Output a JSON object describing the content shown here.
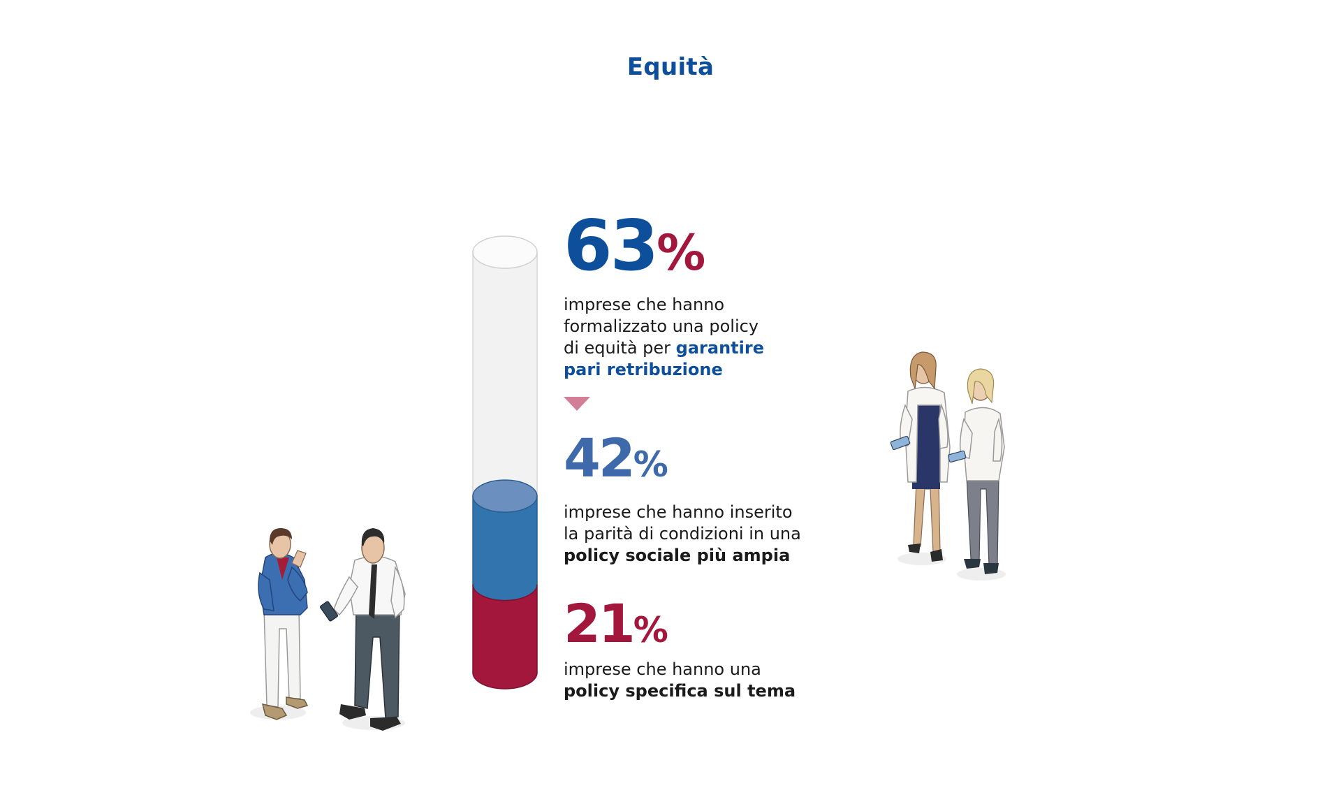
{
  "page": {
    "title": "Equità"
  },
  "stats": [
    {
      "value": "63",
      "unit": "%",
      "line1": "imprese che hanno",
      "line2": "formalizzato una policy",
      "line3_plain": "di equità per",
      "line3_highlight": "garantire",
      "line4_highlight": "pari retribuzione"
    },
    {
      "value": "42",
      "unit": "%",
      "line1": "imprese che hanno inserito",
      "line2": "la parità di condizioni in una",
      "line3_bold": "policy sociale più ampia"
    },
    {
      "value": "21",
      "unit": "%",
      "line1": "imprese che hanno una",
      "line2_bold": "policy specifica sul tema"
    }
  ],
  "chart_data": {
    "type": "bar",
    "categories": [
      "63%",
      "42%",
      "21%"
    ],
    "values": [
      63,
      42,
      21
    ],
    "ylim": [
      0,
      100
    ],
    "colors": [
      "#f2f2f2",
      "#3274ae",
      "#a4173c"
    ]
  }
}
